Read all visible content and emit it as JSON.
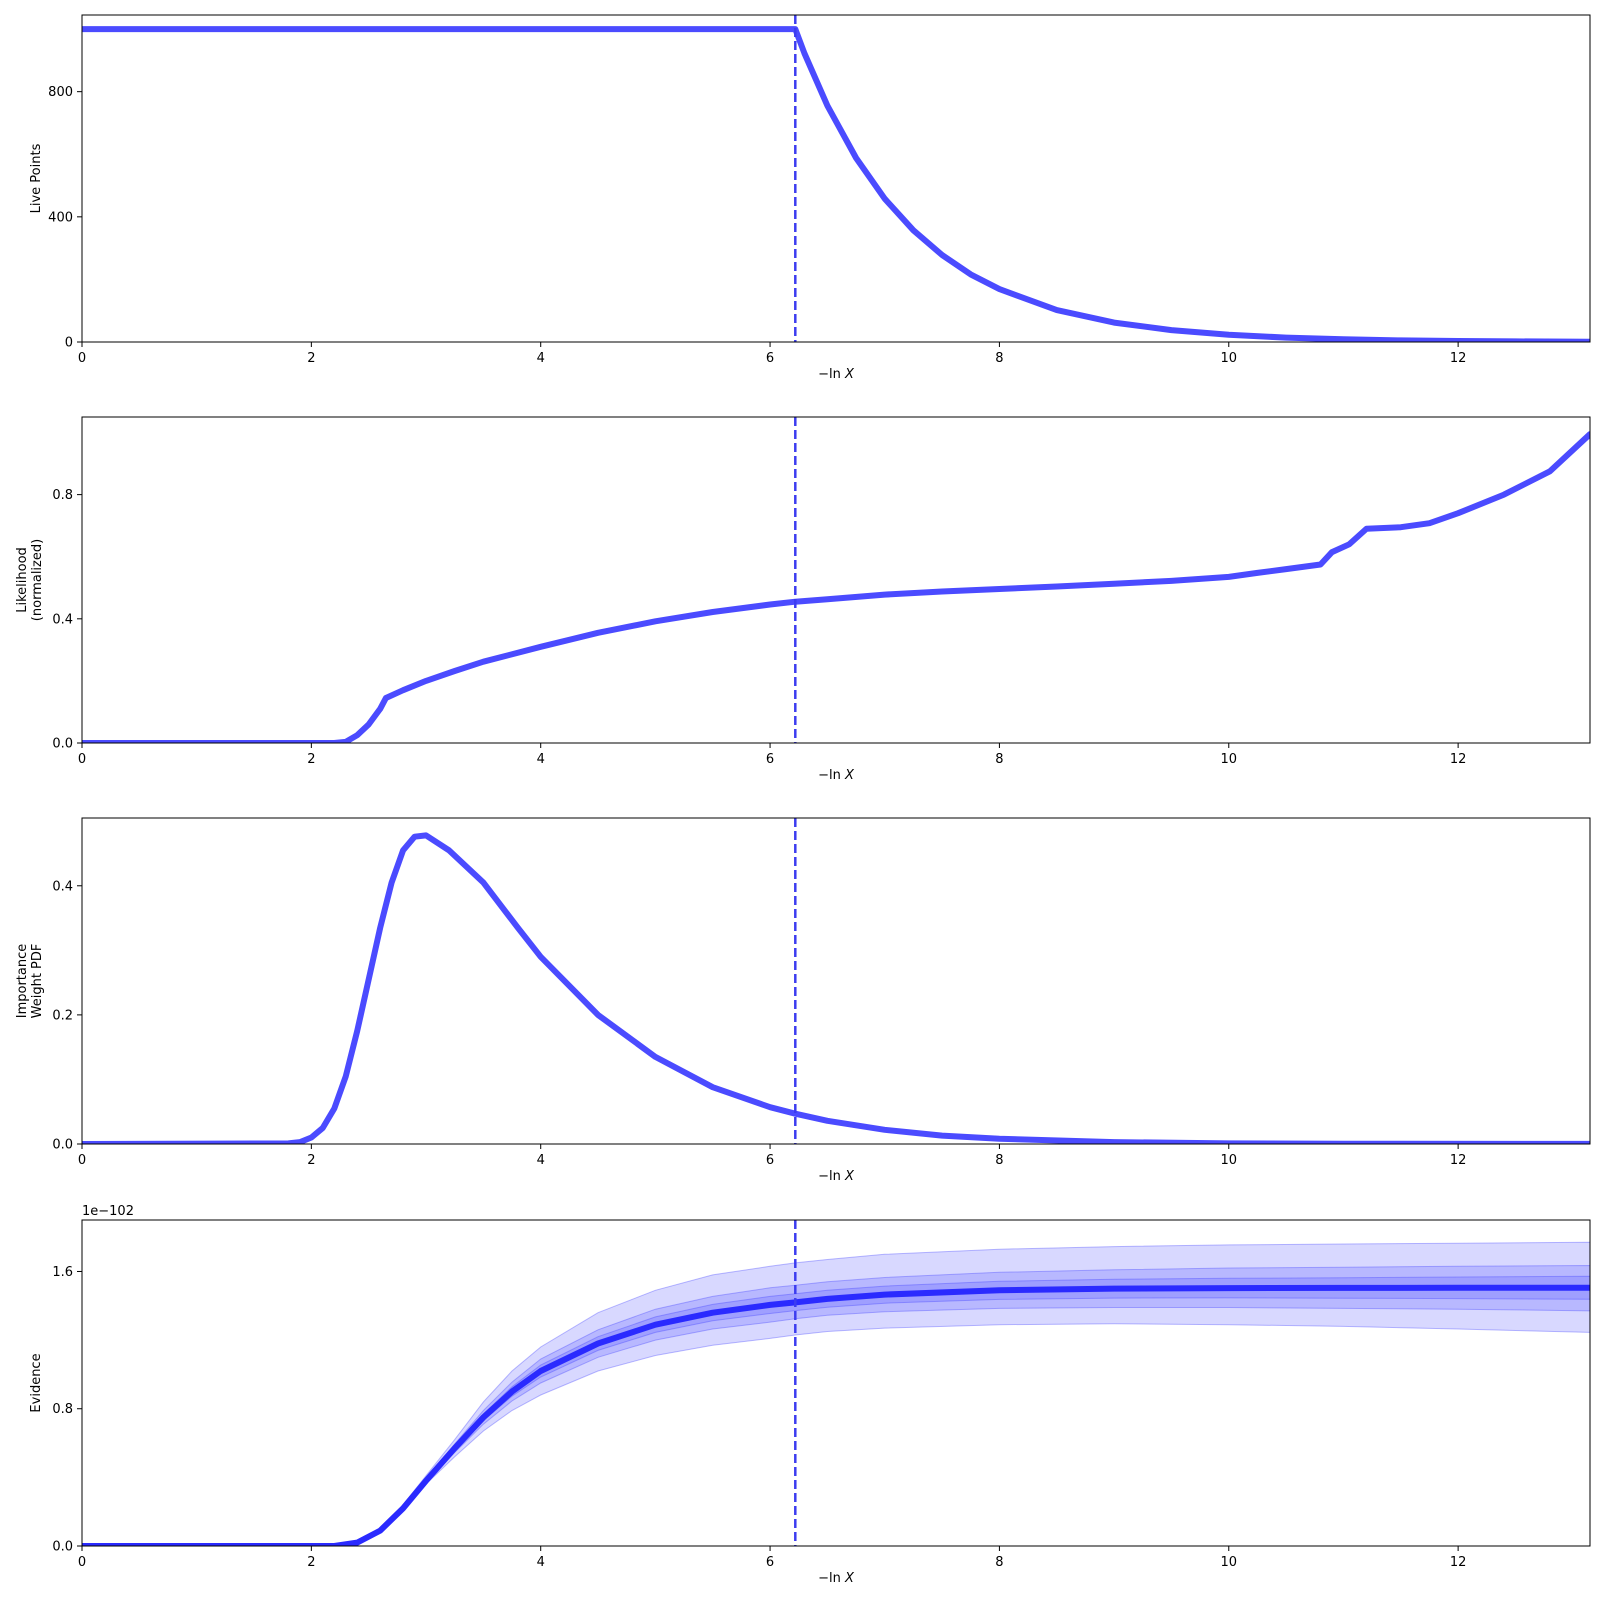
{
  "colors": {
    "line": "#4b4bff",
    "vline": "#3c3cf0",
    "evidence_line": "#2a2aff",
    "band": "#3c3cff",
    "axis": "#000000"
  },
  "chart_data": [
    {
      "type": "line",
      "xlabel_prefix": "−ln",
      "xlabel_var": "X",
      "ylabel": [
        "Live Points"
      ],
      "xlim": [
        0,
        13.15
      ],
      "ylim": [
        0,
        1045
      ],
      "xticks": [
        0,
        2,
        4,
        6,
        8,
        10,
        12
      ],
      "yticks": [
        0,
        400,
        800
      ],
      "yticklabels": [
        "0",
        "400",
        "800"
      ],
      "vline": 6.22,
      "series": [
        {
          "values": [
            [
              0,
              1000
            ],
            [
              6.2,
              1000
            ],
            [
              6.22,
              1000
            ],
            [
              6.3,
              922
            ],
            [
              6.5,
              755
            ],
            [
              6.75,
              588
            ],
            [
              7.0,
              458
            ],
            [
              7.25,
              357
            ],
            [
              7.5,
              278
            ],
            [
              7.75,
              216
            ],
            [
              8.0,
              169
            ],
            [
              8.5,
              102
            ],
            [
              9.0,
              62
            ],
            [
              9.5,
              38
            ],
            [
              10.0,
              23
            ],
            [
              10.5,
              14
            ],
            [
              11.0,
              8.5
            ],
            [
              11.5,
              5.2
            ],
            [
              12.0,
              3.1
            ],
            [
              12.5,
              1.9
            ],
            [
              13.15,
              0.9
            ]
          ]
        }
      ]
    },
    {
      "type": "line",
      "xlabel_prefix": "−ln",
      "xlabel_var": "X",
      "ylabel": [
        "Likelihood",
        "(normalized)"
      ],
      "xlim": [
        0,
        13.15
      ],
      "ylim": [
        0,
        1.05
      ],
      "xticks": [
        0,
        2,
        4,
        6,
        8,
        10,
        12
      ],
      "yticks": [
        0,
        0.4,
        0.8
      ],
      "yticklabels": [
        "0.0",
        "0.4",
        "0.8"
      ],
      "vline": 6.22,
      "series": [
        {
          "values": [
            [
              0,
              0
            ],
            [
              2.2,
              0
            ],
            [
              2.3,
              0.004
            ],
            [
              2.4,
              0.025
            ],
            [
              2.5,
              0.06
            ],
            [
              2.6,
              0.11
            ],
            [
              2.65,
              0.145
            ],
            [
              2.8,
              0.17
            ],
            [
              3.0,
              0.2
            ],
            [
              3.25,
              0.232
            ],
            [
              3.5,
              0.262
            ],
            [
              4.0,
              0.31
            ],
            [
              4.5,
              0.355
            ],
            [
              5.0,
              0.392
            ],
            [
              5.5,
              0.422
            ],
            [
              6.0,
              0.446
            ],
            [
              6.22,
              0.455
            ],
            [
              6.5,
              0.463
            ],
            [
              7.0,
              0.478
            ],
            [
              7.5,
              0.488
            ],
            [
              8.0,
              0.496
            ],
            [
              8.5,
              0.504
            ],
            [
              9.0,
              0.513
            ],
            [
              9.5,
              0.522
            ],
            [
              10.0,
              0.535
            ],
            [
              10.25,
              0.548
            ],
            [
              10.5,
              0.56
            ],
            [
              10.8,
              0.575
            ],
            [
              10.9,
              0.615
            ],
            [
              11.05,
              0.64
            ],
            [
              11.2,
              0.69
            ],
            [
              11.5,
              0.695
            ],
            [
              11.75,
              0.708
            ],
            [
              12.0,
              0.74
            ],
            [
              12.4,
              0.8
            ],
            [
              12.8,
              0.875
            ],
            [
              13.15,
              0.995
            ]
          ]
        }
      ]
    },
    {
      "type": "line",
      "xlabel_prefix": "−ln",
      "xlabel_var": "X",
      "ylabel": [
        "Importance",
        "Weight PDF"
      ],
      "xlim": [
        0,
        13.15
      ],
      "ylim": [
        0,
        0.505
      ],
      "xticks": [
        0,
        2,
        4,
        6,
        8,
        10,
        12
      ],
      "yticks": [
        0,
        0.2,
        0.4
      ],
      "yticklabels": [
        "0.0",
        "0.2",
        "0.4"
      ],
      "vline": 6.22,
      "series": [
        {
          "values": [
            [
              0,
              0
            ],
            [
              1.8,
              0.001
            ],
            [
              1.9,
              0.003
            ],
            [
              2.0,
              0.01
            ],
            [
              2.1,
              0.025
            ],
            [
              2.2,
              0.055
            ],
            [
              2.3,
              0.105
            ],
            [
              2.4,
              0.175
            ],
            [
              2.5,
              0.255
            ],
            [
              2.6,
              0.335
            ],
            [
              2.7,
              0.405
            ],
            [
              2.8,
              0.455
            ],
            [
              2.9,
              0.476
            ],
            [
              3.0,
              0.478
            ],
            [
              3.2,
              0.455
            ],
            [
              3.5,
              0.405
            ],
            [
              3.8,
              0.335
            ],
            [
              4.0,
              0.29
            ],
            [
              4.5,
              0.2
            ],
            [
              5.0,
              0.135
            ],
            [
              5.5,
              0.088
            ],
            [
              6.0,
              0.057
            ],
            [
              6.22,
              0.047
            ],
            [
              6.5,
              0.036
            ],
            [
              7.0,
              0.022
            ],
            [
              7.5,
              0.013
            ],
            [
              8.0,
              0.008
            ],
            [
              9.0,
              0.003
            ],
            [
              10.0,
              0.001
            ],
            [
              11.0,
              0.0004
            ],
            [
              13.15,
              0.0001
            ]
          ]
        }
      ]
    },
    {
      "type": "area",
      "xlabel_prefix": "−ln",
      "xlabel_var": "X",
      "ylabel": [
        "Evidence"
      ],
      "scale_label": "1e−102",
      "xlim": [
        0,
        13.15
      ],
      "ylim": [
        0,
        1.9
      ],
      "xticks": [
        0,
        2,
        4,
        6,
        8,
        10,
        12
      ],
      "yticks": [
        0,
        0.8,
        1.6
      ],
      "yticklabels": [
        "0.0",
        "0.8",
        "1.6"
      ],
      "vline": 6.22,
      "x": [
        0,
        2.2,
        2.4,
        2.6,
        2.8,
        3.0,
        3.25,
        3.5,
        3.75,
        4.0,
        4.5,
        5.0,
        5.5,
        6.0,
        6.22,
        6.5,
        7.0,
        8.0,
        9.0,
        10.0,
        11.0,
        12.0,
        13.15
      ],
      "series": [
        {
          "values": [
            0,
            0.0,
            0.02,
            0.09,
            0.22,
            0.38,
            0.57,
            0.75,
            0.9,
            1.02,
            1.18,
            1.29,
            1.36,
            1.405,
            1.42,
            1.44,
            1.465,
            1.49,
            1.5,
            1.503,
            1.504,
            1.505,
            1.505
          ]
        }
      ],
      "bands": [
        {
          "lower": [
            0,
            0.0,
            0.02,
            0.09,
            0.21,
            0.36,
            0.52,
            0.67,
            0.79,
            0.88,
            1.02,
            1.11,
            1.17,
            1.21,
            1.23,
            1.25,
            1.27,
            1.29,
            1.295,
            1.29,
            1.28,
            1.265,
            1.245
          ],
          "upper": [
            0,
            0.0,
            0.02,
            0.1,
            0.24,
            0.41,
            0.62,
            0.84,
            1.02,
            1.16,
            1.36,
            1.49,
            1.58,
            1.63,
            1.65,
            1.67,
            1.7,
            1.73,
            1.745,
            1.755,
            1.76,
            1.765,
            1.77
          ]
        },
        {
          "lower": [
            0,
            0.0,
            0.02,
            0.09,
            0.215,
            0.37,
            0.545,
            0.71,
            0.845,
            0.95,
            1.1,
            1.2,
            1.265,
            1.305,
            1.325,
            1.345,
            1.365,
            1.385,
            1.39,
            1.39,
            1.385,
            1.38,
            1.37
          ],
          "upper": [
            0,
            0.0,
            0.02,
            0.095,
            0.23,
            0.395,
            0.595,
            0.79,
            0.955,
            1.09,
            1.26,
            1.38,
            1.455,
            1.505,
            1.52,
            1.54,
            1.565,
            1.595,
            1.61,
            1.62,
            1.625,
            1.63,
            1.635
          ]
        },
        {
          "lower": [
            0,
            0.0,
            0.02,
            0.09,
            0.218,
            0.375,
            0.558,
            0.73,
            0.873,
            0.985,
            1.14,
            1.245,
            1.313,
            1.355,
            1.372,
            1.392,
            1.415,
            1.437,
            1.445,
            1.446,
            1.444,
            1.442,
            1.438
          ],
          "upper": [
            0,
            0.0,
            0.02,
            0.092,
            0.223,
            0.386,
            0.582,
            0.77,
            0.928,
            1.055,
            1.22,
            1.335,
            1.408,
            1.455,
            1.47,
            1.49,
            1.515,
            1.543,
            1.555,
            1.56,
            1.564,
            1.568,
            1.572
          ]
        }
      ]
    }
  ]
}
